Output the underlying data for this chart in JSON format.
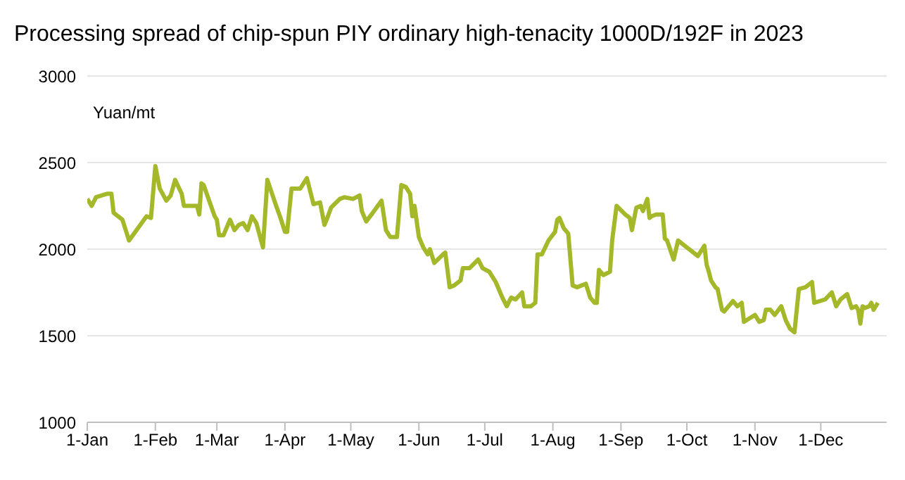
{
  "chart_data": {
    "type": "line",
    "title": "Processing spread of chip-spun PIY ordinary high-tenacity 1000D/192F in 2023",
    "ylabel": "Yuan/mt",
    "x": [
      "2023-01-01",
      "2023-01-03",
      "2023-01-05",
      "2023-01-10",
      "2023-01-12",
      "2023-01-13",
      "2023-01-17",
      "2023-01-20",
      "2023-01-28",
      "2023-01-30",
      "2023-02-01",
      "2023-02-03",
      "2023-02-06",
      "2023-02-08",
      "2023-02-10",
      "2023-02-13",
      "2023-02-14",
      "2023-02-16",
      "2023-02-20",
      "2023-02-21",
      "2023-02-22",
      "2023-02-23",
      "2023-02-28",
      "2023-03-01",
      "2023-03-02",
      "2023-03-04",
      "2023-03-07",
      "2023-03-09",
      "2023-03-11",
      "2023-03-13",
      "2023-03-15",
      "2023-03-17",
      "2023-03-19",
      "2023-03-22",
      "2023-03-24",
      "2023-03-28",
      "2023-03-30",
      "2023-04-01",
      "2023-04-02",
      "2023-04-04",
      "2023-04-08",
      "2023-04-11",
      "2023-04-14",
      "2023-04-17",
      "2023-04-19",
      "2023-04-20",
      "2023-04-22",
      "2023-04-26",
      "2023-04-28",
      "2023-05-02",
      "2023-05-05",
      "2023-05-06",
      "2023-05-08",
      "2023-05-11",
      "2023-05-15",
      "2023-05-17",
      "2023-05-19",
      "2023-05-22",
      "2023-05-24",
      "2023-05-26",
      "2023-05-28",
      "2023-05-29",
      "2023-05-30",
      "2023-06-01",
      "2023-06-03",
      "2023-06-05",
      "2023-06-06",
      "2023-06-08",
      "2023-06-12",
      "2023-06-13",
      "2023-06-15",
      "2023-06-17",
      "2023-06-20",
      "2023-06-21",
      "2023-06-24",
      "2023-06-28",
      "2023-06-30",
      "2023-07-03",
      "2023-07-06",
      "2023-07-09",
      "2023-07-11",
      "2023-07-13",
      "2023-07-15",
      "2023-07-18",
      "2023-07-19",
      "2023-07-22",
      "2023-07-24",
      "2023-07-25",
      "2023-07-27",
      "2023-07-30",
      "2023-08-02",
      "2023-08-03",
      "2023-08-04",
      "2023-08-06",
      "2023-08-08",
      "2023-08-10",
      "2023-08-12",
      "2023-08-16",
      "2023-08-18",
      "2023-08-20",
      "2023-08-21",
      "2023-08-22",
      "2023-08-24",
      "2023-08-27",
      "2023-08-28",
      "2023-08-30",
      "2023-09-03",
      "2023-09-05",
      "2023-09-06",
      "2023-09-08",
      "2023-09-10",
      "2023-09-11",
      "2023-09-13",
      "2023-09-14",
      "2023-09-15",
      "2023-09-17",
      "2023-09-20",
      "2023-09-21",
      "2023-09-22",
      "2023-09-25",
      "2023-09-27",
      "2023-09-30",
      "2023-10-03",
      "2023-10-06",
      "2023-10-09",
      "2023-10-10",
      "2023-10-11",
      "2023-10-12",
      "2023-10-14",
      "2023-10-15",
      "2023-10-17",
      "2023-10-18",
      "2023-10-20",
      "2023-10-22",
      "2023-10-24",
      "2023-10-26",
      "2023-10-27",
      "2023-11-01",
      "2023-11-02",
      "2023-11-03",
      "2023-11-05",
      "2023-11-06",
      "2023-11-08",
      "2023-11-10",
      "2023-11-13",
      "2023-11-15",
      "2023-11-17",
      "2023-11-19",
      "2023-11-21",
      "2023-11-24",
      "2023-11-27",
      "2023-11-28",
      "2023-12-03",
      "2023-12-06",
      "2023-12-08",
      "2023-12-10",
      "2023-12-13",
      "2023-12-15",
      "2023-12-17",
      "2023-12-18",
      "2023-12-19",
      "2023-12-20",
      "2023-12-21",
      "2023-12-23",
      "2023-12-24",
      "2023-12-25",
      "2023-12-27"
    ],
    "series": [
      {
        "color": "#a5b82a",
        "values": [
          2290,
          2250,
          2300,
          2320,
          2320,
          2210,
          2170,
          2050,
          2190,
          2180,
          2480,
          2350,
          2280,
          2310,
          2400,
          2320,
          2250,
          2250,
          2250,
          2200,
          2380,
          2370,
          2190,
          2170,
          2080,
          2080,
          2170,
          2110,
          2140,
          2150,
          2110,
          2190,
          2150,
          2010,
          2400,
          2250,
          2180,
          2100,
          2100,
          2350,
          2350,
          2410,
          2260,
          2270,
          2140,
          2170,
          2240,
          2290,
          2300,
          2290,
          2310,
          2220,
          2160,
          2210,
          2280,
          2110,
          2070,
          2070,
          2370,
          2360,
          2320,
          2190,
          2250,
          2070,
          2010,
          1970,
          2000,
          1920,
          1970,
          1980,
          1780,
          1790,
          1820,
          1890,
          1890,
          1940,
          1890,
          1870,
          1810,
          1720,
          1670,
          1720,
          1710,
          1750,
          1670,
          1670,
          1690,
          1970,
          1970,
          2050,
          2100,
          2170,
          2180,
          2120,
          2090,
          1790,
          1780,
          1800,
          1720,
          1690,
          1690,
          1880,
          1850,
          1870,
          2050,
          2250,
          2200,
          2180,
          2110,
          2240,
          2250,
          2220,
          2290,
          2180,
          2190,
          2200,
          2200,
          2060,
          2050,
          1940,
          2050,
          2020,
          1990,
          1960,
          2020,
          1910,
          1870,
          1820,
          1780,
          1770,
          1650,
          1640,
          1670,
          1700,
          1670,
          1690,
          1580,
          1620,
          1600,
          1580,
          1590,
          1650,
          1650,
          1620,
          1670,
          1590,
          1540,
          1520,
          1770,
          1780,
          1810,
          1690,
          1710,
          1750,
          1670,
          1710,
          1740,
          1660,
          1670,
          1650,
          1570,
          1670,
          1660,
          1670,
          1690,
          1650,
          1690
        ]
      }
    ],
    "xlim": [
      "2023-01-01",
      "2023-12-31"
    ],
    "xticks": [
      {
        "value": "2023-01-01",
        "label": "1-Jan"
      },
      {
        "value": "2023-02-01",
        "label": "1-Feb"
      },
      {
        "value": "2023-03-01",
        "label": "1-Mar"
      },
      {
        "value": "2023-04-01",
        "label": "1-Apr"
      },
      {
        "value": "2023-05-01",
        "label": "1-May"
      },
      {
        "value": "2023-06-01",
        "label": "1-Jun"
      },
      {
        "value": "2023-07-01",
        "label": "1-Jul"
      },
      {
        "value": "2023-08-01",
        "label": "1-Aug"
      },
      {
        "value": "2023-09-01",
        "label": "1-Sep"
      },
      {
        "value": "2023-10-01",
        "label": "1-Oct"
      },
      {
        "value": "2023-11-01",
        "label": "1-Nov"
      },
      {
        "value": "2023-12-01",
        "label": "1-Dec"
      }
    ],
    "ylim": [
      1000,
      3000
    ],
    "yticks": [
      1000,
      1500,
      2000,
      2500,
      3000
    ],
    "grid": "y",
    "legend": false,
    "marker": "none",
    "line_style": "solid"
  }
}
